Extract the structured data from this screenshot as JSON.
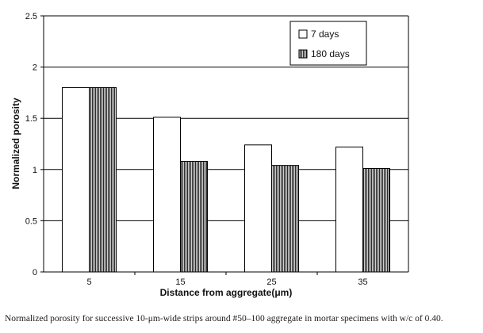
{
  "chart_data": {
    "type": "bar",
    "categories": [
      "5",
      "15",
      "25",
      "35"
    ],
    "series": [
      {
        "name": "7 days",
        "values": [
          1.8,
          1.51,
          1.24,
          1.22
        ],
        "style": "white"
      },
      {
        "name": "180 days",
        "values": [
          1.8,
          1.08,
          1.04,
          1.01
        ],
        "style": "vertical-hatch"
      }
    ],
    "xlabel": "Distance from aggregate(μm)",
    "ylabel": "Normalized porosity",
    "ylim": [
      0,
      2.5
    ],
    "yticks": [
      "0",
      "0.5",
      "1",
      "1.5",
      "2",
      "2.5"
    ],
    "grid": true,
    "legend_position": "top-right"
  },
  "caption": "Normalized porosity for successive 10-μm-wide strips around #50–100 aggregate in mortar specimens with w/c of 0.40."
}
